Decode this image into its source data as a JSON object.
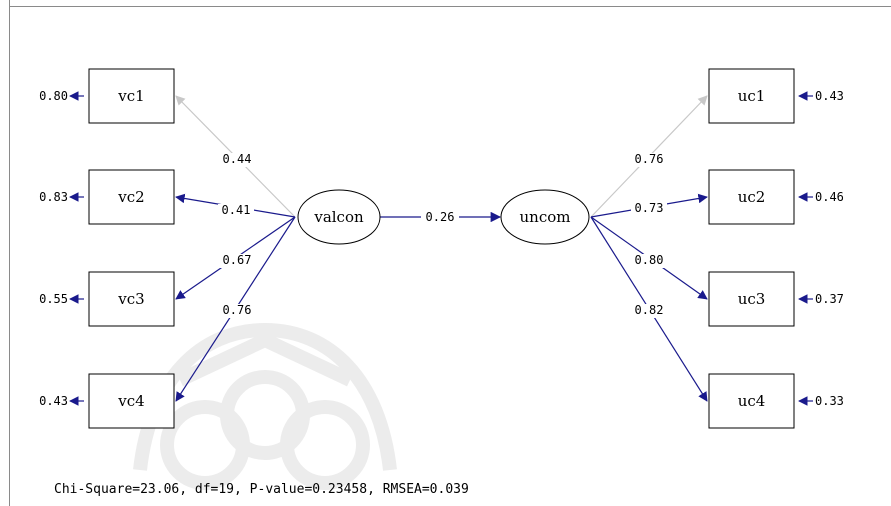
{
  "latent": {
    "valcon": "valcon",
    "uncom": "uncom",
    "path_coef": "0.26"
  },
  "left_items": [
    {
      "name": "vc1",
      "error": "0.80",
      "loading": "0.44",
      "color": "#c8c8c8"
    },
    {
      "name": "vc2",
      "error": "0.83",
      "loading": "0.41",
      "color": "#1a1a8c"
    },
    {
      "name": "vc3",
      "error": "0.55",
      "loading": "0.67",
      "color": "#1a1a8c"
    },
    {
      "name": "vc4",
      "error": "0.43",
      "loading": "0.76",
      "color": "#1a1a8c"
    }
  ],
  "right_items": [
    {
      "name": "uc1",
      "error": "0.43",
      "loading": "0.76",
      "color": "#c8c8c8"
    },
    {
      "name": "uc2",
      "error": "0.46",
      "loading": "0.73",
      "color": "#1a1a8c"
    },
    {
      "name": "uc3",
      "error": "0.37",
      "loading": "0.80",
      "color": "#1a1a8c"
    },
    {
      "name": "uc4",
      "error": "0.33",
      "loading": "0.82",
      "color": "#1a1a8c"
    }
  ],
  "footer": "Chi-Square=23.06, df=19, P-value=0.23458, RMSEA=0.039",
  "colors": {
    "arrow": "#1a1a8c",
    "faded_arrow": "#c8c8c8",
    "watermark": "#ececec"
  }
}
